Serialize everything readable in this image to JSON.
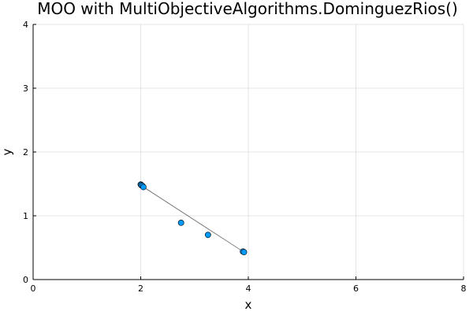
{
  "chart_data": {
    "type": "scatter",
    "title": "MOO with MultiObjectiveAlgorithms.DominguezRios()",
    "xlabel": "x",
    "ylabel": "y",
    "xlim": [
      0,
      8
    ],
    "ylim": [
      0,
      4
    ],
    "xticks": [
      0,
      2,
      4,
      6,
      8
    ],
    "yticks": [
      0,
      1,
      2,
      3,
      4
    ],
    "grid": true,
    "legend": "none",
    "fill_region": {
      "color": "#e26f46",
      "opacity": 0.55,
      "polygon": [
        [
          2.0,
          1.48
        ],
        [
          3.92,
          0.43
        ],
        [
          2.05,
          1.45
        ]
      ]
    },
    "points": {
      "color": "#009af9",
      "x": [
        2.0,
        2.01,
        2.03,
        2.05,
        2.75,
        3.25,
        3.9,
        3.92
      ],
      "y": [
        1.49,
        1.48,
        1.47,
        1.45,
        0.89,
        0.7,
        0.44,
        0.43
      ]
    }
  }
}
